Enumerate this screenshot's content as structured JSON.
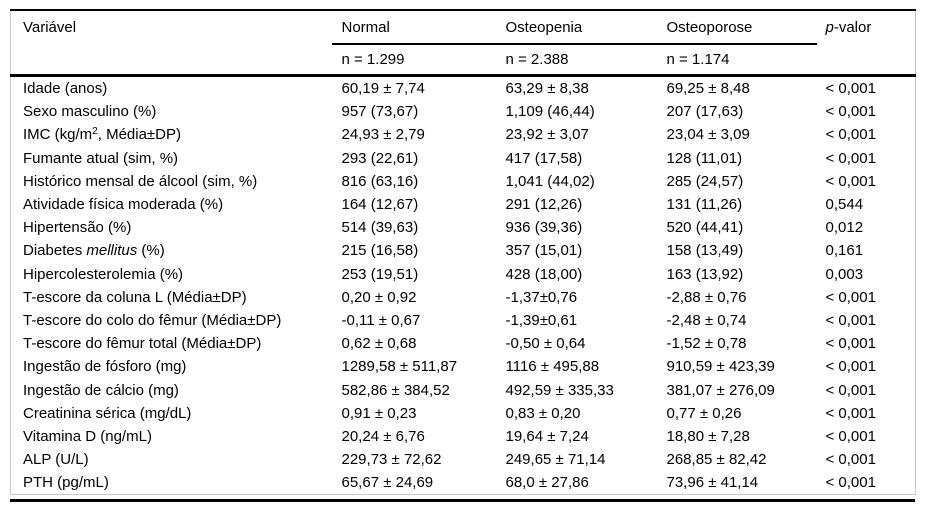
{
  "table": {
    "headers": [
      "Variável",
      "Normal",
      "Osteopenia",
      "Osteoporose",
      "*p*-valor"
    ],
    "subheaders": [
      "",
      "n = 1.299",
      "n = 2.388",
      "n = 1.174",
      ""
    ],
    "rows": [
      {
        "variable": "Idade (anos)",
        "normal": "60,19 ± 7,74",
        "osteopenia": "63,29 ± 8,38",
        "osteoporose": "69,25 ± 8,48",
        "p": "< 0,001"
      },
      {
        "variable": "Sexo masculino (%)",
        "normal": "957 (73,67)",
        "osteopenia": "1,109 (46,44)",
        "osteoporose": "207 (17,63)",
        "p": "< 0,001"
      },
      {
        "variable": "IMC (kg/m^2^, Média±DP)",
        "normal": "24,93 ± 2,79",
        "osteopenia": "23,92 ± 3,07",
        "osteoporose": "23,04 ± 3,09",
        "p": "< 0,001"
      },
      {
        "variable": "Fumante atual (sim, %)",
        "normal": "293 (22,61)",
        "osteopenia": "417 (17,58)",
        "osteoporose": "128 (11,01)",
        "p": "< 0,001"
      },
      {
        "variable": "Histórico mensal de álcool (sim, %)",
        "normal": "816 (63,16)",
        "osteopenia": "1,041 (44,02)",
        "osteoporose": "285 (24,57)",
        "p": "< 0,001"
      },
      {
        "variable": "Atividade física moderada (%)",
        "normal": "164 (12,67)",
        "osteopenia": "291 (12,26)",
        "osteoporose": "131 (11,26)",
        "p": "0,544"
      },
      {
        "variable": "Hipertensão (%)",
        "normal": "514 (39,63)",
        "osteopenia": "936 (39,36)",
        "osteoporose": "520 (44,41)",
        "p": "0,012"
      },
      {
        "variable": "Diabetes *mellitus* (%)",
        "normal": "215 (16,58)",
        "osteopenia": "357 (15,01)",
        "osteoporose": "158 (13,49)",
        "p": "0,161"
      },
      {
        "variable": "Hipercolesterolemia (%)",
        "normal": "253 (19,51)",
        "osteopenia": "428 (18,00)",
        "osteoporose": "163 (13,92)",
        "p": "0,003"
      },
      {
        "variable": "T-escore da coluna L (Média±DP)",
        "normal": "0,20 ± 0,92",
        "osteopenia": "-1,37±0,76",
        "osteoporose": "-2,88 ± 0,76",
        "p": "< 0,001"
      },
      {
        "variable": "T-escore do colo do fêmur (Média±DP)",
        "normal": "-0,11 ± 0,67",
        "osteopenia": "-1,39±0,61",
        "osteoporose": "-2,48 ± 0,74",
        "p": "< 0,001"
      },
      {
        "variable": "T-escore do fêmur total (Média±DP)",
        "normal": "0,62 ± 0,68",
        "osteopenia": "-0,50 ± 0,64",
        "osteoporose": "-1,52 ± 0,78",
        "p": "< 0,001"
      },
      {
        "variable": "Ingestão de fósforo (mg)",
        "normal": "1289,58 ± 511,87",
        "osteopenia": "1116 ± 495,88",
        "osteoporose": "910,59 ± 423,39",
        "p": "< 0,001"
      },
      {
        "variable": "Ingestão de cálcio (mg)",
        "normal": "582,86 ± 384,52",
        "osteopenia": "492,59 ± 335,33",
        "osteoporose": "381,07 ± 276,09",
        "p": "< 0,001"
      },
      {
        "variable": "Creatinina sérica (mg/dL)",
        "normal": "0,91 ± 0,23",
        "osteopenia": "0,83 ± 0,20",
        "osteoporose": "0,77 ± 0,26",
        "p": "< 0,001"
      },
      {
        "variable": "Vitamina D (ng/mL)",
        "normal": "20,24 ± 6,76",
        "osteopenia": "19,64 ± 7,24",
        "osteoporose": "18,80 ± 7,28",
        "p": "< 0,001"
      },
      {
        "variable": "ALP (U/L)",
        "normal": "229,73 ± 72,62",
        "osteopenia": "249,65 ± 71,14",
        "osteoporose": "268,85 ± 82,42",
        "p": "< 0,001"
      },
      {
        "variable": "PTH (pg/mL)",
        "normal": "65,67 ± 24,69",
        "osteopenia": "68,0 ± 27,86",
        "osteoporose": "73,96 ± 41,14",
        "p": "< 0,001"
      }
    ],
    "colors": {
      "rule": "#000000",
      "faint_border": "#c9c9c9",
      "text": "#000000",
      "background": "#ffffff"
    }
  }
}
